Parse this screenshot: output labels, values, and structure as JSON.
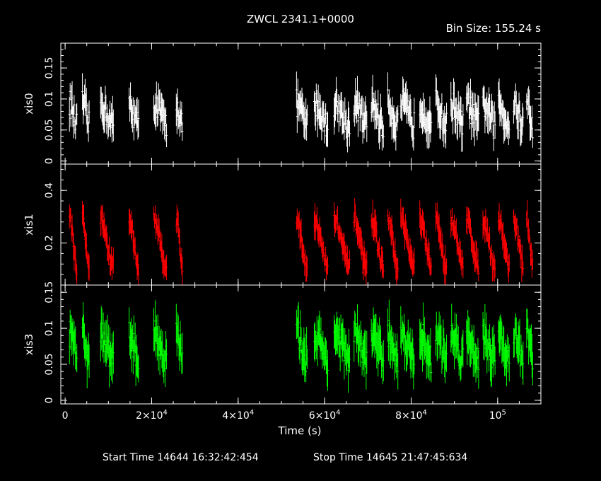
{
  "chart_data": {
    "type": "line",
    "title": "ZWCL 2341.1+0000",
    "bin_size_label": "Bin Size: 155.24 s",
    "xlabel": "Time (s)",
    "xlim": [
      -1000,
      110000
    ],
    "x_ticks": [
      0,
      20000,
      40000,
      60000,
      80000,
      100000
    ],
    "x_tick_labels": [
      {
        "mant": "0",
        "exp": ""
      },
      {
        "mant": "2×10",
        "exp": "4"
      },
      {
        "mant": "4×10",
        "exp": "4"
      },
      {
        "mant": "6×10",
        "exp": "4"
      },
      {
        "mant": "8×10",
        "exp": "4"
      },
      {
        "mant": "10",
        "exp": "5"
      }
    ],
    "start_time_label": "Start Time 14644 16:32:42:454",
    "stop_time_label": "Stop Time 14645 21:47:45:634",
    "segments": [
      [
        1000,
        2800
      ],
      [
        4000,
        5600
      ],
      [
        8200,
        11200
      ],
      [
        14800,
        17000
      ],
      [
        20500,
        23600
      ],
      [
        25700,
        27200
      ],
      [
        53500,
        56000
      ],
      [
        57600,
        60800
      ],
      [
        62200,
        65800
      ],
      [
        66800,
        69800
      ],
      [
        70800,
        73600
      ],
      [
        74600,
        77000
      ],
      [
        77600,
        80800
      ],
      [
        82000,
        84700
      ],
      [
        85700,
        88200
      ],
      [
        89200,
        92100
      ],
      [
        92800,
        95700
      ],
      [
        96600,
        99500
      ],
      [
        100200,
        102800
      ],
      [
        103700,
        106000
      ],
      [
        106700,
        108200
      ]
    ],
    "panels": [
      {
        "name": "xis0",
        "color": "#ffffff",
        "ylim": [
          -0.005,
          0.19
        ],
        "yticks": [
          0,
          0.05,
          0.1,
          0.15
        ],
        "ytick_labels": [
          "0",
          "0.05",
          "0.1",
          "0.15"
        ],
        "mean": 0.075,
        "amp": 0.018,
        "noise": 0.022,
        "err": 0.022
      },
      {
        "name": "xis1",
        "color": "#ff0000",
        "ylim": [
          0.04,
          0.5
        ],
        "yticks": [
          0.2,
          0.4
        ],
        "ytick_labels": [
          "0.2",
          "0.4"
        ],
        "mean": 0.2,
        "amp": 0.09,
        "noise": 0.03,
        "err": 0.04
      },
      {
        "name": "xis3",
        "color": "#00ff00",
        "ylim": [
          -0.005,
          0.16
        ],
        "yticks": [
          0,
          0.05,
          0.1,
          0.15
        ],
        "ytick_labels": [
          "0",
          "0.05",
          "0.1",
          "0.15"
        ],
        "mean": 0.075,
        "amp": 0.018,
        "noise": 0.02,
        "err": 0.022
      }
    ]
  }
}
